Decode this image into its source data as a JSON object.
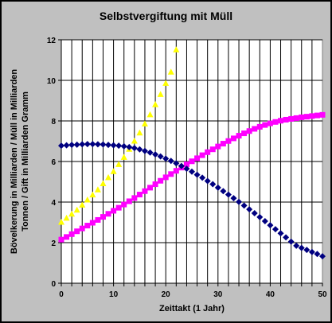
{
  "chart_data": {
    "type": "scatter",
    "title": "Selbstvergiftung mit Müll",
    "xlabel": "Zeittakt (1 Jahr)",
    "ylabel_lines": [
      "Bövelkerung in Milliarden / Müll in Milliarden",
      "Tonnen / Gift in Milliarden Gramm"
    ],
    "xlim": [
      0,
      50
    ],
    "ylim": [
      0,
      12
    ],
    "xticks": [
      0,
      10,
      20,
      30,
      40,
      50
    ],
    "yticks": [
      0,
      2,
      4,
      6,
      8,
      10,
      12
    ],
    "grid": true,
    "series": [
      {
        "color": "#ffff00",
        "marker": "triangle",
        "x": [
          0,
          1,
          2,
          3,
          4,
          5,
          6,
          7,
          8,
          9,
          10,
          11,
          12,
          13,
          14,
          15,
          16,
          17,
          18,
          19,
          20,
          21,
          22
        ],
        "y": [
          3.0,
          3.2,
          3.4,
          3.6,
          3.85,
          4.1,
          4.35,
          4.6,
          4.9,
          5.2,
          5.5,
          5.85,
          6.2,
          6.6,
          7.0,
          7.4,
          7.85,
          8.3,
          8.8,
          9.3,
          9.85,
          10.4,
          11.5
        ]
      },
      {
        "color": "#ff00ff",
        "marker": "square",
        "x": [
          0,
          1,
          2,
          3,
          4,
          5,
          6,
          7,
          8,
          9,
          10,
          11,
          12,
          13,
          14,
          15,
          16,
          17,
          18,
          19,
          20,
          21,
          22,
          23,
          24,
          25,
          26,
          27,
          28,
          29,
          30,
          31,
          32,
          33,
          34,
          35,
          36,
          37,
          38,
          39,
          40,
          41,
          42,
          43,
          44,
          45,
          46,
          47,
          48,
          49,
          50
        ],
        "y": [
          2.15,
          2.28,
          2.42,
          2.56,
          2.7,
          2.84,
          2.98,
          3.12,
          3.27,
          3.42,
          3.57,
          3.72,
          3.88,
          4.04,
          4.2,
          4.37,
          4.54,
          4.71,
          4.88,
          5.05,
          5.22,
          5.38,
          5.54,
          5.7,
          5.86,
          6.01,
          6.16,
          6.31,
          6.46,
          6.6,
          6.74,
          6.88,
          7.01,
          7.14,
          7.27,
          7.39,
          7.5,
          7.61,
          7.71,
          7.8,
          7.88,
          7.95,
          8.01,
          8.06,
          8.1,
          8.14,
          8.18,
          8.21,
          8.24,
          8.27,
          8.3
        ]
      },
      {
        "color": "#000080",
        "marker": "diamond",
        "x": [
          0,
          1,
          2,
          3,
          4,
          5,
          6,
          7,
          8,
          9,
          10,
          11,
          12,
          13,
          14,
          15,
          16,
          17,
          18,
          19,
          20,
          21,
          22,
          23,
          24,
          25,
          26,
          27,
          28,
          29,
          30,
          31,
          32,
          33,
          34,
          35,
          36,
          37,
          38,
          39,
          40,
          41,
          42,
          43,
          44,
          45,
          46,
          47,
          48,
          49,
          50
        ],
        "y": [
          6.78,
          6.8,
          6.82,
          6.83,
          6.85,
          6.86,
          6.86,
          6.85,
          6.84,
          6.82,
          6.8,
          6.78,
          6.75,
          6.71,
          6.66,
          6.6,
          6.52,
          6.44,
          6.35,
          6.25,
          6.14,
          6.03,
          5.91,
          5.78,
          5.64,
          5.5,
          5.35,
          5.2,
          5.04,
          4.88,
          4.71,
          4.54,
          4.37,
          4.19,
          4.01,
          3.83,
          3.64,
          3.45,
          3.26,
          3.06,
          2.86,
          2.66,
          2.46,
          2.26,
          2.05,
          1.85,
          1.74,
          1.64,
          1.54,
          1.44,
          1.33
        ]
      }
    ]
  }
}
